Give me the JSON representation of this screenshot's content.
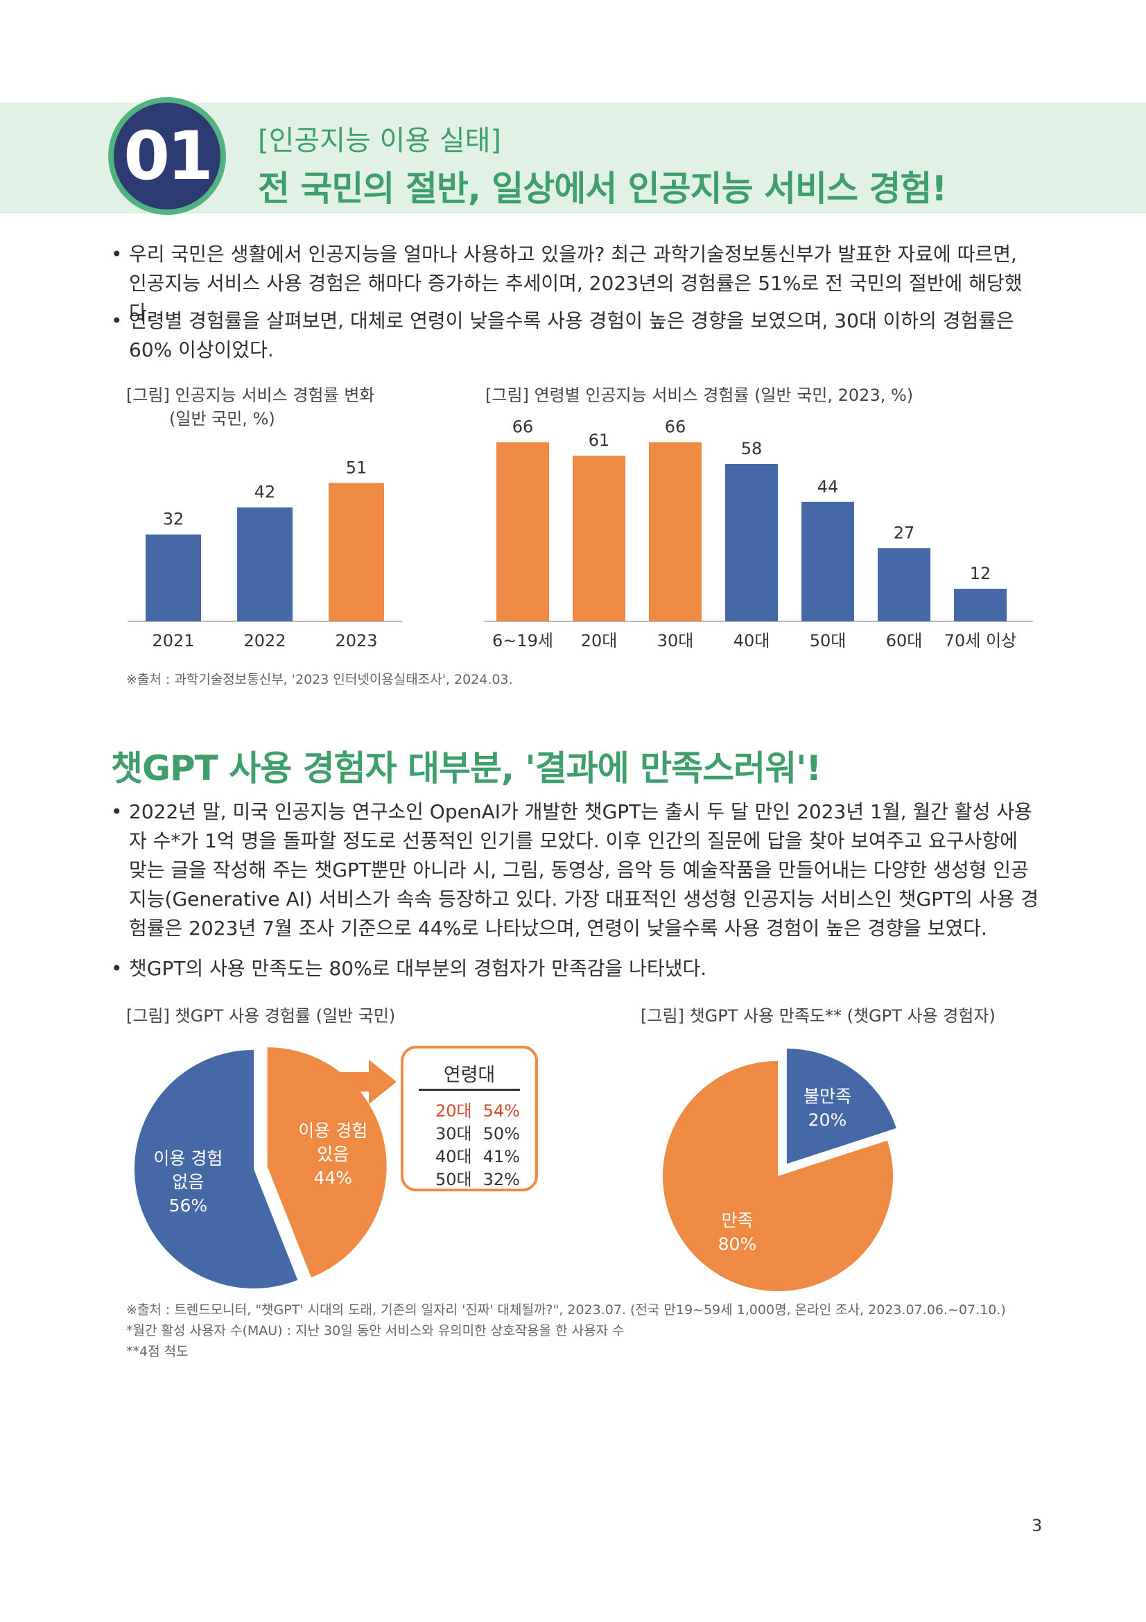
{
  "header": {
    "number": "01",
    "category": "[인공지능 이용 실태]",
    "title": "전 국민의 절반, 일상에서 인공지능 서비스 경험!"
  },
  "section1": {
    "bullets": [
      "우리 국민은 생활에서 인공지능을 얼마나 사용하고 있을까? 최근 과학기술정보통신부가 발표한 자료에 따르면, 인공지능 서비스 사용 경험은 해마다 증가하는 추세이며, 2023년의 경험률은 51%로 전 국민의 절반에 해당했다.",
      "연령별 경험률을 살펴보면, 대체로 연령이 낮을수록 사용 경험이 높은 경향을 보였으며, 30대 이하의 경험률은 60% 이상이었다."
    ],
    "source": "※출처 : 과학기술정보통신부, '2023 인터넷이용실태조사', 2024.03."
  },
  "section2": {
    "title": "챗GPT 사용 경험자 대부분, '결과에 만족스러워'!",
    "bullets": [
      "2022년 말, 미국 인공지능 연구소인 OpenAI가 개발한 챗GPT는 출시 두 달 만인 2023년 1월, 월간 활성 사용자 수*가 1억 명을 돌파할 정도로 선풍적인 인기를 모았다. 이후 인간의 질문에 답을 찾아 보여주고 요구사항에 맞는 글을 작성해 주는 챗GPT뿐만 아니라 시, 그림, 동영상, 음악 등 예술작품을 만들어내는 다양한 생성형 인공지능(Generative AI) 서비스가 속속 등장하고 있다. 가장 대표적인 생성형 인공지능 서비스인 챗GPT의 사용 경험률은 2023년 7월 조사 기준으로 44%로 나타났으며, 연령이 낮을수록 사용 경험이 높은 경향을 보였다.",
      "챗GPT의 사용 만족도는 80%로 대부분의 경험자가 만족감을 나타냈다."
    ],
    "age_box": {
      "title": "연령대",
      "rows": [
        {
          "age": "20대",
          "value": "54%"
        },
        {
          "age": "30대",
          "value": "50%"
        },
        {
          "age": "40대",
          "value": "41%"
        },
        {
          "age": "50대",
          "value": "32%"
        }
      ]
    },
    "footnotes": [
      "※출처 : 트렌드모니터, \"챗GPT' 시대의 도래, 기존의 일자리 '진짜' 대체될까?\", 2023.07. (전국 만19~59세 1,000명, 온라인 조사, 2023.07.06.~07.10.)",
      "*월간 활성 사용자 수(MAU) : 지난 30일 동안 서비스와 유의미한 상호작용을 한 사용자 수",
      "**4점 척도"
    ]
  },
  "page_number": "3",
  "colors": {
    "blue": "#4568a6",
    "orange": "#ef8a44",
    "green": "#3f9f6c",
    "highlight_red": "#d9472f"
  },
  "chart_data": [
    {
      "type": "bar",
      "caption_line1": "[그림] 인공지능 서비스 경험률 변화",
      "caption_line2": "(일반 국민, %)",
      "categories": [
        "2021",
        "2022",
        "2023"
      ],
      "values": [
        32,
        42,
        51
      ],
      "bar_colors": [
        "#4568a6",
        "#4568a6",
        "#ef8a44"
      ],
      "ylim": [
        0,
        70
      ]
    },
    {
      "type": "bar",
      "caption": "[그림] 연령별 인공지능 서비스 경험률 (일반 국민, 2023, %)",
      "categories": [
        "6~19세",
        "20대",
        "30대",
        "40대",
        "50대",
        "60대",
        "70세 이상"
      ],
      "values": [
        66,
        61,
        66,
        58,
        44,
        27,
        12
      ],
      "bar_colors": [
        "#ef8a44",
        "#ef8a44",
        "#ef8a44",
        "#4568a6",
        "#4568a6",
        "#4568a6",
        "#4568a6"
      ],
      "ylim": [
        0,
        70
      ]
    },
    {
      "type": "pie",
      "caption": "[그림] 챗GPT 사용 경험률 (일반 국민)",
      "slices": [
        {
          "label_line1": "이용 경험",
          "label_line2": "있음",
          "value": 44,
          "value_label": "44%",
          "color": "#ef8a44",
          "exploded": true
        },
        {
          "label_line1": "이용 경험",
          "label_line2": "없음",
          "value": 56,
          "value_label": "56%",
          "color": "#4568a6",
          "exploded": false
        }
      ]
    },
    {
      "type": "pie",
      "caption": "[그림] 챗GPT 사용 만족도** (챗GPT 사용 경험자)",
      "slices": [
        {
          "label_line1": "불만족",
          "value": 20,
          "value_label": "20%",
          "color": "#4568a6",
          "exploded": true
        },
        {
          "label_line1": "만족",
          "value": 80,
          "value_label": "80%",
          "color": "#ef8a44",
          "exploded": false
        }
      ]
    }
  ]
}
